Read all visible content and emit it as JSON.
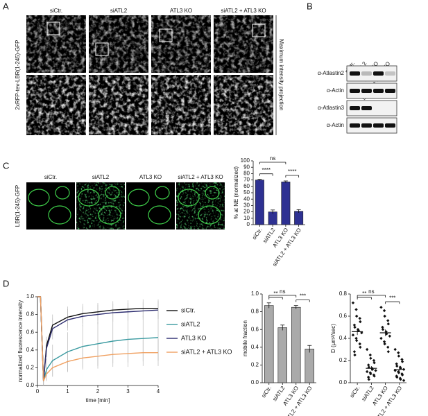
{
  "panel_labels": [
    "A",
    "B",
    "C",
    "D"
  ],
  "panel_a": {
    "columns": [
      "siCtr.",
      "siATL2",
      "ATL3 KO",
      "siATL2 + ATL3 KO"
    ],
    "row_label": "2xRFP-tev-LBR(1-245)-GFP",
    "side_label": "Maximum intensity projection"
  },
  "panel_b": {
    "columns": [
      "siCtr.",
      "siATL2",
      "ATL3 KO",
      "siATL2 + ATL3 KO"
    ],
    "rows": [
      "α-Atlastin2",
      "α-Actin",
      "α-Atlastin3",
      "α-Actin"
    ]
  },
  "panel_c": {
    "columns": [
      "siCtr.",
      "siATL2",
      "ATL3 KO",
      "siATL2 + ATL3 KO"
    ],
    "row_label": "LBR(1-245)-GFP"
  },
  "chart_data": [
    {
      "type": "bar",
      "y_label": "% at NE (normalized)",
      "categories": [
        "siCtr.",
        "siATL2",
        "ATL3 KO",
        "siATL2 + ATL3 KO"
      ],
      "values": [
        70,
        20,
        67,
        21
      ],
      "errors": [
        1,
        3,
        1.5,
        2.5
      ],
      "color": "#2e3192",
      "ylim": [
        0,
        100
      ],
      "yticks": [
        0,
        10,
        20,
        30,
        40,
        50,
        60,
        70,
        80,
        90,
        100
      ],
      "annotations": [
        "ns",
        "****",
        "****"
      ]
    },
    {
      "type": "line",
      "x_label": "time [min]",
      "y_label": "normalized fluorescence intensity",
      "x": [
        0,
        0.1,
        0.2,
        0.3,
        0.5,
        1,
        1.5,
        2,
        2.5,
        3,
        3.5,
        4
      ],
      "series": [
        {
          "name": "siCtr.",
          "color": "#111111",
          "values": [
            1,
            1,
            0.05,
            0.45,
            0.68,
            0.77,
            0.81,
            0.83,
            0.85,
            0.86,
            0.87,
            0.87
          ],
          "errors": [
            0,
            0,
            0.05,
            0.1,
            0.12,
            0.12,
            0.11,
            0.1,
            0.1,
            0.1,
            0.1,
            0.1
          ]
        },
        {
          "name": "siATL2",
          "color": "#3a9aa0",
          "values": [
            1,
            1,
            0.05,
            0.18,
            0.28,
            0.38,
            0.44,
            0.47,
            0.5,
            0.52,
            0.53,
            0.54
          ],
          "errors": [
            0,
            0,
            0.05,
            0.12,
            0.18,
            0.22,
            0.24,
            0.25,
            0.25,
            0.26,
            0.26,
            0.26
          ]
        },
        {
          "name": "ATL3 KO",
          "color": "#2b2b6e",
          "values": [
            1,
            1,
            0.05,
            0.42,
            0.64,
            0.74,
            0.78,
            0.8,
            0.82,
            0.83,
            0.84,
            0.85
          ],
          "errors": [
            0,
            0,
            0.05,
            0.1,
            0.12,
            0.12,
            0.11,
            0.11,
            0.1,
            0.1,
            0.1,
            0.1
          ]
        },
        {
          "name": "siATL2 + ATL3 KO",
          "color": "#f0a060",
          "values": [
            1,
            1,
            0.05,
            0.13,
            0.2,
            0.27,
            0.31,
            0.33,
            0.35,
            0.36,
            0.37,
            0.37
          ],
          "errors": [
            0,
            0,
            0.05,
            0.08,
            0.1,
            0.12,
            0.13,
            0.14,
            0.14,
            0.15,
            0.15,
            0.15
          ]
        }
      ],
      "xlim": [
        0,
        4
      ],
      "xticks": [
        0,
        1,
        2,
        3,
        4
      ],
      "ylim": [
        0,
        1
      ],
      "yticks": [
        {
          "value": 0,
          "label": "0.0"
        },
        0.2,
        0.4,
        0.6,
        0.8,
        {
          "value": 1,
          "label": "1.0"
        }
      ]
    },
    {
      "type": "bar",
      "y_label": "mobile fraction",
      "categories": [
        "siCtr.",
        "siATL2",
        "ATL3 KO",
        "siATL2 + ATL3 KO"
      ],
      "values": [
        0.87,
        0.62,
        0.85,
        0.38
      ],
      "errors": [
        0.03,
        0.03,
        0.02,
        0.04
      ],
      "color": "#aaaaaa",
      "ylim": [
        0,
        1
      ],
      "yticks": [
        {
          "value": 0,
          "label": "0.0"
        },
        0.2,
        0.4,
        0.6,
        0.8,
        {
          "value": 1,
          "label": "1.0"
        }
      ],
      "annotations": [
        "ns",
        "**",
        "***"
      ]
    },
    {
      "type": "scatter",
      "y_label": "D (μm²/sec)",
      "categories": [
        "siCtr.",
        "siATL2",
        "ATL3 KO",
        "siATL2 + ATL3 KO"
      ],
      "points": [
        [
          0.72,
          0.66,
          0.6,
          0.58,
          0.55,
          0.52,
          0.5,
          0.48,
          0.47,
          0.45,
          0.43,
          0.4,
          0.38,
          0.35,
          0.32,
          0.28,
          0.25
        ],
        [
          0.3,
          0.25,
          0.22,
          0.2,
          0.18,
          0.16,
          0.14,
          0.13,
          0.12,
          0.11,
          0.1,
          0.09,
          0.08,
          0.07,
          0.06,
          0.05,
          0.03
        ],
        [
          0.68,
          0.65,
          0.6,
          0.56,
          0.53,
          0.5,
          0.48,
          0.46,
          0.44,
          0.42,
          0.4,
          0.37,
          0.35,
          0.32,
          0.28
        ],
        [
          0.3,
          0.27,
          0.24,
          0.21,
          0.19,
          0.17,
          0.15,
          0.14,
          0.13,
          0.12,
          0.11,
          0.1,
          0.09,
          0.08,
          0.07,
          0.06,
          0.05,
          0.04,
          0.03,
          0.02
        ]
      ],
      "means": [
        0.46,
        0.13,
        0.45,
        0.12
      ],
      "errors": [
        0.03,
        0.02,
        0.03,
        0.015
      ],
      "ylim": [
        0,
        0.8
      ],
      "yticks": [
        {
          "value": 0,
          "label": "0.0"
        },
        0.2,
        0.4,
        0.6,
        0.8
      ],
      "annotations": [
        "ns",
        "**",
        "***"
      ]
    }
  ]
}
